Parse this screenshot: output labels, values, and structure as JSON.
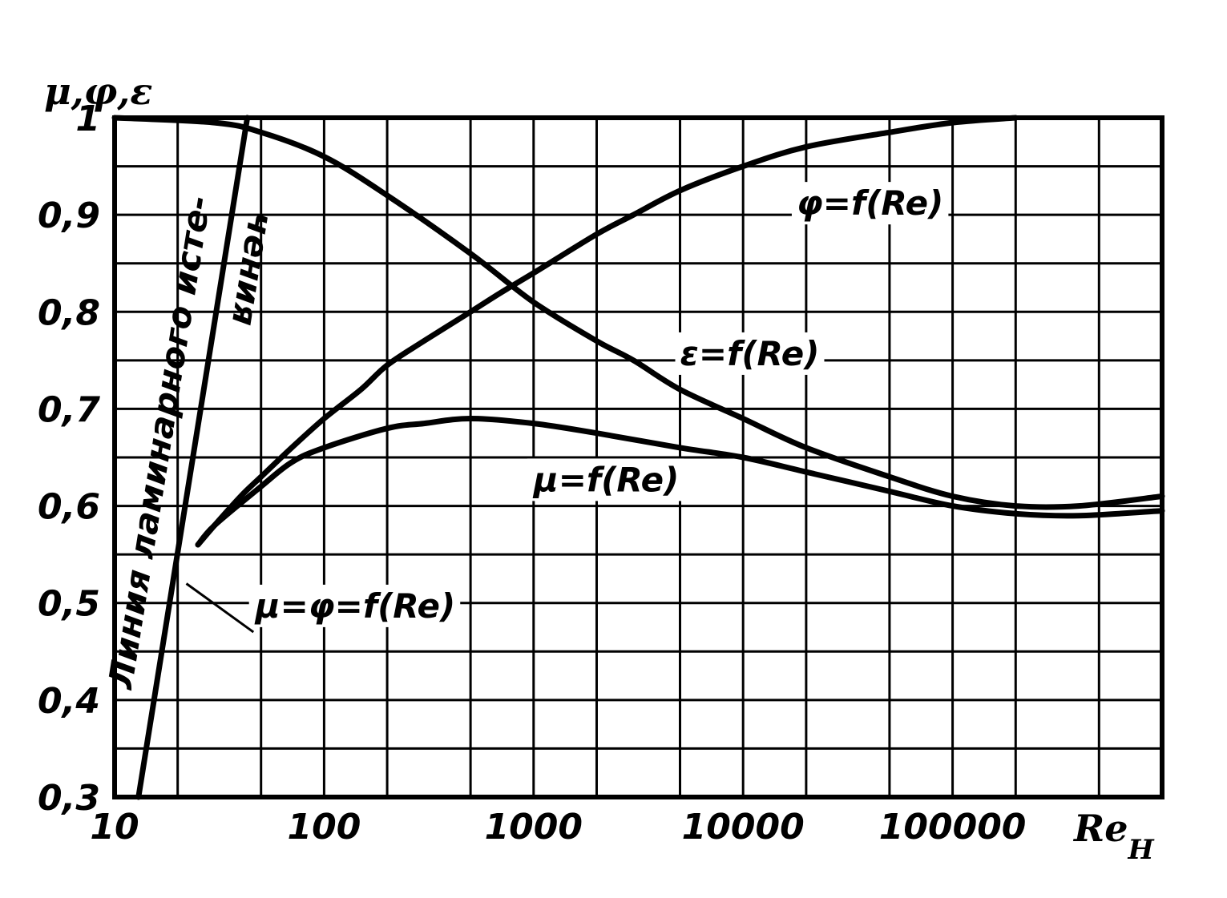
{
  "colors": {
    "ink": "#000000",
    "paper": "#ffffff"
  },
  "chart_data": {
    "type": "line",
    "x_scale": "log",
    "xlim": [
      10,
      1000000
    ],
    "ylim": [
      0.3,
      1.0
    ],
    "grid": true,
    "legend": "none",
    "ylabel": "μ,φ,ε",
    "xlabel": "Re",
    "xlabel_subscript": "H",
    "x_ticks": [
      {
        "value": 10,
        "label": "10"
      },
      {
        "value": 100,
        "label": "100"
      },
      {
        "value": 1000,
        "label": "1000"
      },
      {
        "value": 10000,
        "label": "10000"
      },
      {
        "value": 100000,
        "label": "100000"
      }
    ],
    "y_ticks": [
      {
        "value": 0.3,
        "label": "0,3"
      },
      {
        "value": 0.4,
        "label": "0,4"
      },
      {
        "value": 0.5,
        "label": "0,5"
      },
      {
        "value": 0.6,
        "label": "0,6"
      },
      {
        "value": 0.7,
        "label": "0,7"
      },
      {
        "value": 0.8,
        "label": "0,8"
      },
      {
        "value": 0.9,
        "label": "0,9"
      },
      {
        "value": 1.0,
        "label": "1"
      }
    ],
    "series": [
      {
        "name": "φ=f(Re)",
        "x": [
          25,
          30,
          40,
          50,
          70,
          100,
          150,
          200,
          300,
          500,
          700,
          1000,
          2000,
          3000,
          5000,
          10000,
          20000,
          50000,
          100000,
          200000
        ],
        "y": [
          0.56,
          0.58,
          0.61,
          0.63,
          0.66,
          0.69,
          0.72,
          0.745,
          0.77,
          0.8,
          0.82,
          0.84,
          0.88,
          0.9,
          0.925,
          0.95,
          0.97,
          0.985,
          0.995,
          1.0
        ]
      },
      {
        "name": "ε=f(Re)",
        "x": [
          10,
          30,
          50,
          100,
          200,
          500,
          1000,
          2000,
          3000,
          5000,
          10000,
          20000,
          50000,
          100000,
          200000,
          400000,
          1000000
        ],
        "y": [
          1.0,
          0.995,
          0.985,
          0.96,
          0.92,
          0.86,
          0.81,
          0.77,
          0.75,
          0.72,
          0.69,
          0.66,
          0.63,
          0.61,
          0.6,
          0.6,
          0.61
        ]
      },
      {
        "name": "μ=f(Re)",
        "x": [
          25,
          30,
          50,
          70,
          100,
          200,
          300,
          500,
          1000,
          2000,
          5000,
          10000,
          20000,
          50000,
          100000,
          200000,
          400000,
          1000000
        ],
        "y": [
          0.56,
          0.58,
          0.62,
          0.645,
          0.66,
          0.68,
          0.685,
          0.69,
          0.685,
          0.675,
          0.66,
          0.65,
          0.635,
          0.615,
          0.6,
          0.592,
          0.59,
          0.595
        ]
      }
    ],
    "boundary_line": {
      "label": "Линия ламинарного исте-чения",
      "label_parts": [
        "Линия ламинарного исте-",
        "чения"
      ],
      "x": [
        13,
        43
      ],
      "y": [
        0.3,
        1.0
      ]
    },
    "annotations": [
      {
        "text": "φ=f(Re)",
        "x": 18000,
        "y": 0.9
      },
      {
        "text": "ε=f(Re)",
        "x": 5000,
        "y": 0.745
      },
      {
        "text": "μ=f(Re)",
        "x": 1000,
        "y": 0.615
      },
      {
        "text": "μ=φ=f(Re)",
        "x": 47,
        "y": 0.485
      }
    ]
  }
}
